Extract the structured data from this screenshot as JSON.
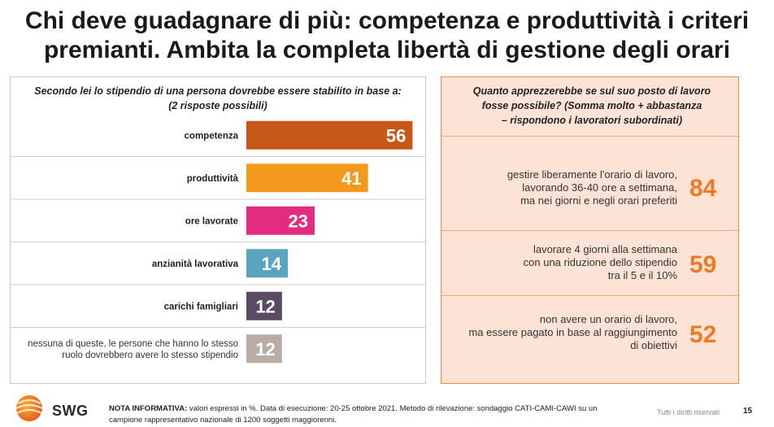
{
  "title": "Chi deve guadagnare di più: competenza e produttività i criteri premianti. Ambita la completa libertà di gestione degli orari",
  "left": {
    "question": "Secondo lei lo stipendio di una persona dovrebbe essere stabilito in base a:",
    "question_sub": "(2 risposte possibili)"
  },
  "chart_data": {
    "type": "bar",
    "orientation": "horizontal",
    "title": "Secondo lei lo stipendio di una persona dovrebbe essere stabilito in base a: (2 risposte possibili)",
    "unit": "%",
    "xlim": [
      0,
      100
    ],
    "categories": [
      "competenza",
      "produttività",
      "ore lavorate",
      "anzianità lavorativa",
      "carichi famigliari",
      "nessuna di queste, le persone che hanno lo stesso ruolo dovrebbero avere lo stesso stipendio"
    ],
    "values": [
      56,
      41,
      23,
      14,
      12,
      12
    ],
    "colors": [
      "#c8581a",
      "#f39a1e",
      "#e32b7f",
      "#5ba4c0",
      "#5b4a63",
      "#b8aca5"
    ]
  },
  "right": {
    "question_line1": "Quanto apprezzerebbe se sul suo posto di lavoro",
    "question_line2": "fosse possibile? (Somma molto + abbastanza",
    "question_line3": "– rispondono i lavoratori subordinati)",
    "items": [
      {
        "l1": "gestire liberamente l'orario di lavoro,",
        "l2": "lavorando 36-40 ore a settimana,",
        "l3": "ma nei giorni e negli orari preferiti",
        "value": "84"
      },
      {
        "l1": "lavorare 4 giorni alla settimana",
        "l2": "con una riduzione dello stipendio",
        "l3": "tra il 5 e il 10%",
        "value": "59"
      },
      {
        "l1": "non avere un orario di lavoro,",
        "l2": "ma essere pagato in base al raggiungimento",
        "l3": "di obiettivi",
        "value": "52"
      }
    ]
  },
  "footer": {
    "logo_text": "SWG",
    "note_label": "NOTA INFORMATIVA:",
    "note_text": "valori espressi in %. Data di esecuzione: 20-25 ottobre 2021. Metodo di rilevazione: sondaggio CATI-CAMI-CAWI su un campione rappresentativo nazionale di 1200 soggetti maggiorenni.",
    "rights": "Tutti i diritti riservati",
    "page": "15"
  }
}
